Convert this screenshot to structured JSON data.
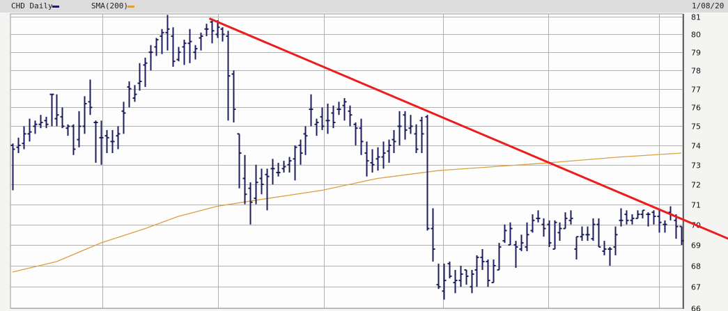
{
  "header": {
    "symbol_label": "CHD Daily",
    "sma_label": "SMA(200)",
    "date": "1/08/20"
  },
  "colors": {
    "price_bars": "#1c1c5c",
    "sma": "#d9a040",
    "trendline": "#ee1c1c",
    "grid": "#b0b0b0"
  },
  "chart_data": {
    "type": "ohlc",
    "y_scale": "log",
    "ylim": [
      66,
      81
    ],
    "yticks": [
      "81",
      "80",
      "79",
      "78",
      "77",
      "76",
      "75",
      "74",
      "73",
      "72",
      "71",
      "70",
      "69",
      "68",
      "67",
      "66"
    ],
    "grid": true,
    "legend": "top-left",
    "series": [
      {
        "name": "CHD Daily",
        "ohlc": [
          [
            74.0,
            74.1,
            71.7,
            73.8
          ],
          [
            73.9,
            74.4,
            73.6,
            74.0
          ],
          [
            74.1,
            75.0,
            73.8,
            74.6
          ],
          [
            74.6,
            75.4,
            74.2,
            74.7
          ],
          [
            75.0,
            75.3,
            74.6,
            75.1
          ],
          [
            75.1,
            75.6,
            74.9,
            75.2
          ],
          [
            75.3,
            75.5,
            74.9,
            75.1
          ],
          [
            76.7,
            76.7,
            75.0,
            76.7
          ],
          [
            75.4,
            76.7,
            75.0,
            75.6
          ],
          [
            75.5,
            76.0,
            74.9,
            75.0
          ],
          [
            74.9,
            75.1,
            74.5,
            75.0
          ],
          [
            75.0,
            75.1,
            73.5,
            73.8
          ],
          [
            74.3,
            75.8,
            73.9,
            75.0
          ],
          [
            75.0,
            76.6,
            74.6,
            76.2
          ],
          [
            76.3,
            77.5,
            75.6,
            76.0
          ],
          [
            75.2,
            75.3,
            73.1,
            75.2
          ],
          [
            74.4,
            75.3,
            73.0,
            74.4
          ],
          [
            74.5,
            74.8,
            73.6,
            74.4
          ],
          [
            74.2,
            74.8,
            73.6,
            74.2
          ],
          [
            74.5,
            75.0,
            73.8,
            74.6
          ],
          [
            75.8,
            76.3,
            74.6,
            75.7
          ],
          [
            77.1,
            77.4,
            76.0,
            77.0
          ],
          [
            76.5,
            77.2,
            76.3,
            76.7
          ],
          [
            77.3,
            78.4,
            76.9,
            77.4
          ],
          [
            78.3,
            78.7,
            77.1,
            78.4
          ],
          [
            79.0,
            79.4,
            78.0,
            79.0
          ],
          [
            79.3,
            79.8,
            78.8,
            79.7
          ],
          [
            79.9,
            80.3,
            78.9,
            80.1
          ],
          [
            80.1,
            81.1,
            79.1,
            80.3
          ],
          [
            79.9,
            80.4,
            78.2,
            78.5
          ],
          [
            78.6,
            79.3,
            78.5,
            79.0
          ],
          [
            79.3,
            79.7,
            78.3,
            79.5
          ],
          [
            79.5,
            80.3,
            78.4,
            79.6
          ],
          [
            79.0,
            79.4,
            78.6,
            79.2
          ],
          [
            79.8,
            80.1,
            79.1,
            79.9
          ],
          [
            80.3,
            80.6,
            79.9,
            80.3
          ],
          [
            80.7,
            80.9,
            79.5,
            80.2
          ],
          [
            80.0,
            80.8,
            79.8,
            80.4
          ],
          [
            80.3,
            80.4,
            79.6,
            80.0
          ],
          [
            79.9,
            80.2,
            75.3,
            77.7
          ],
          [
            77.8,
            78.0,
            75.2,
            75.9
          ],
          [
            74.6,
            74.6,
            71.8,
            73.6
          ],
          [
            72.3,
            73.5,
            71.0,
            71.5
          ],
          [
            71.8,
            72.1,
            70.0,
            71.1
          ],
          [
            71.3,
            73.0,
            71.0,
            72.1
          ],
          [
            72.3,
            72.8,
            71.5,
            72.0
          ],
          [
            72.5,
            72.8,
            70.7,
            72.4
          ],
          [
            72.8,
            73.3,
            72.0,
            72.8
          ],
          [
            72.6,
            73.1,
            72.4,
            72.6
          ],
          [
            72.8,
            73.2,
            72.6,
            72.9
          ],
          [
            73.0,
            73.4,
            72.6,
            73.2
          ],
          [
            73.3,
            74.0,
            72.2,
            73.9
          ],
          [
            74.0,
            74.3,
            73.0,
            73.6
          ],
          [
            74.6,
            75.0,
            73.5,
            74.5
          ],
          [
            75.9,
            76.7,
            75.0,
            75.9
          ],
          [
            75.1,
            75.4,
            74.5,
            75.2
          ],
          [
            75.5,
            76.0,
            74.8,
            75.0
          ],
          [
            75.3,
            76.2,
            74.6,
            75.3
          ],
          [
            75.7,
            76.1,
            74.9,
            75.2
          ],
          [
            75.9,
            76.3,
            75.6,
            75.9
          ],
          [
            76.1,
            76.5,
            75.3,
            76.3
          ],
          [
            75.8,
            76.1,
            75.0,
            75.6
          ],
          [
            75.1,
            75.2,
            74.0,
            74.9
          ],
          [
            74.9,
            75.4,
            73.5,
            74.2
          ],
          [
            73.6,
            74.2,
            72.4,
            73.2
          ],
          [
            73.1,
            73.8,
            72.6,
            73.0
          ],
          [
            73.3,
            73.9,
            72.7,
            73.4
          ],
          [
            73.4,
            74.2,
            72.8,
            73.6
          ],
          [
            73.7,
            74.3,
            73.1,
            74.0
          ],
          [
            74.3,
            74.8,
            73.6,
            74.2
          ],
          [
            75.0,
            75.8,
            74.0,
            75.0
          ],
          [
            75.6,
            75.8,
            74.3,
            74.8
          ],
          [
            74.9,
            75.6,
            74.6,
            75.0
          ],
          [
            74.6,
            75.1,
            73.6,
            73.8
          ],
          [
            75.3,
            75.5,
            73.6,
            74.6
          ],
          [
            75.5,
            75.6,
            69.7,
            69.8
          ],
          [
            69.8,
            70.8,
            68.2,
            68.8
          ],
          [
            67.1,
            68.1,
            66.9,
            67.0
          ],
          [
            66.8,
            68.1,
            66.4,
            67.3
          ],
          [
            68.1,
            68.2,
            67.4,
            67.5
          ],
          [
            67.2,
            67.8,
            66.7,
            67.3
          ],
          [
            67.3,
            68.0,
            67.0,
            67.6
          ],
          [
            67.8,
            67.8,
            67.1,
            67.5
          ],
          [
            67.0,
            67.8,
            66.7,
            67.6
          ],
          [
            67.8,
            68.5,
            67.0,
            68.4
          ],
          [
            68.4,
            68.8,
            67.8,
            68.2
          ],
          [
            68.2,
            68.3,
            67.0,
            67.3
          ],
          [
            67.2,
            68.3,
            67.2,
            68.0
          ],
          [
            67.8,
            69.1,
            67.8,
            68.9
          ],
          [
            69.2,
            70.0,
            69.1,
            69.7
          ],
          [
            69.0,
            70.1,
            69.0,
            69.8
          ],
          [
            69.0,
            69.2,
            67.9,
            68.9
          ],
          [
            68.8,
            69.5,
            68.7,
            69.1
          ],
          [
            68.9,
            70.1,
            68.7,
            69.5
          ],
          [
            69.7,
            70.5,
            69.6,
            70.2
          ],
          [
            70.3,
            70.7,
            70.1,
            70.3
          ],
          [
            70.0,
            70.3,
            69.4,
            69.8
          ],
          [
            70.0,
            70.2,
            68.9,
            69.1
          ],
          [
            68.8,
            70.2,
            68.8,
            70.1
          ],
          [
            69.6,
            70.1,
            69.2,
            69.8
          ],
          [
            69.8,
            70.6,
            69.8,
            70.3
          ],
          [
            70.2,
            70.7,
            70.0,
            70.3
          ],
          [
            68.8,
            69.4,
            68.3,
            69.4
          ],
          [
            69.4,
            69.9,
            69.2,
            69.5
          ],
          [
            69.5,
            69.9,
            69.2,
            69.5
          ],
          [
            69.3,
            70.3,
            69.2,
            70.0
          ],
          [
            70.0,
            70.3,
            68.9,
            68.9
          ],
          [
            68.7,
            69.2,
            68.5,
            68.8
          ],
          [
            68.8,
            68.9,
            68.0,
            68.8
          ],
          [
            68.9,
            69.9,
            68.5,
            69.5
          ],
          [
            70.2,
            70.8,
            69.9,
            70.2
          ],
          [
            70.5,
            70.7,
            70.0,
            70.2
          ],
          [
            70.2,
            70.5,
            70.0,
            70.3
          ],
          [
            70.3,
            70.7,
            70.3,
            70.5
          ],
          [
            70.5,
            70.7,
            70.3,
            70.7
          ],
          [
            70.5,
            70.6,
            69.9,
            70.5
          ],
          [
            70.6,
            70.7,
            70.0,
            70.4
          ],
          [
            70.4,
            70.7,
            69.6,
            70.1
          ],
          [
            70.0,
            70.2,
            69.6,
            70.0
          ],
          [
            70.6,
            70.9,
            70.2,
            70.5
          ],
          [
            70.2,
            70.5,
            69.3,
            69.9
          ],
          [
            69.9,
            69.9,
            69.0,
            69.2
          ]
        ]
      },
      {
        "name": "SMA(200)",
        "points": [
          [
            0,
            67.7
          ],
          [
            8,
            68.2
          ],
          [
            16,
            69.1
          ],
          [
            24,
            69.8
          ],
          [
            30,
            70.4
          ],
          [
            37,
            70.9
          ],
          [
            44,
            71.2
          ],
          [
            56,
            71.7
          ],
          [
            66,
            72.3
          ],
          [
            77,
            72.7
          ],
          [
            97,
            73.1
          ],
          [
            110,
            73.4
          ],
          [
            121,
            73.6
          ]
        ]
      }
    ],
    "trendline": [
      [
        35.6,
        80.9
      ],
      [
        129.5,
        69.3
      ]
    ]
  }
}
